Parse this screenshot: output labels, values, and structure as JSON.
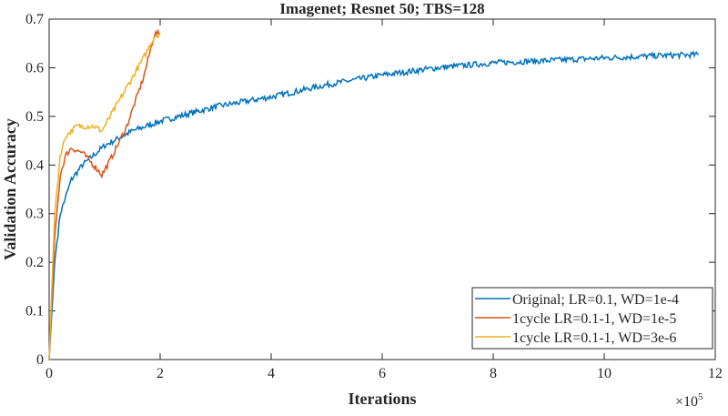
{
  "chart_data": {
    "type": "line",
    "title": "Imagenet; Resnet 50; TBS=128",
    "xlabel": "Iterations",
    "ylabel": "Validation Accuracy",
    "x_multiplier": "×10",
    "x_multiplier_exp": "5",
    "xlim": [
      0,
      12
    ],
    "ylim": [
      0,
      0.7
    ],
    "xticks": [
      0,
      2,
      4,
      6,
      8,
      10,
      12
    ],
    "yticks": [
      0,
      0.1,
      0.2,
      0.3,
      0.4,
      0.5,
      0.6,
      0.7
    ],
    "grid": false,
    "legend_position": "bottom-right",
    "series": [
      {
        "name": "Original; LR=0.1, WD=1e-4",
        "color": "#0072BD",
        "x": [
          0,
          0.1,
          0.2,
          0.4,
          0.6,
          1,
          1.5,
          2,
          3,
          4,
          5,
          6,
          7,
          8,
          9,
          10,
          11,
          11.7
        ],
        "y": [
          0,
          0.2,
          0.3,
          0.37,
          0.4,
          0.44,
          0.47,
          0.49,
          0.52,
          0.54,
          0.565,
          0.585,
          0.6,
          0.61,
          0.615,
          0.62,
          0.625,
          0.627
        ]
      },
      {
        "name": "1cycle LR=0.1-1, WD=1e-5",
        "color": "#D95319",
        "x": [
          0,
          0.1,
          0.2,
          0.3,
          0.4,
          0.6,
          0.8,
          0.95,
          1.1,
          1.4,
          1.7,
          1.9,
          2.0
        ],
        "y": [
          0,
          0.25,
          0.38,
          0.42,
          0.435,
          0.425,
          0.4,
          0.38,
          0.41,
          0.48,
          0.58,
          0.67,
          0.67
        ]
      },
      {
        "name": "1cycle LR=0.1-1, WD=3e-6",
        "color": "#EDB120",
        "x": [
          0,
          0.1,
          0.2,
          0.3,
          0.5,
          0.8,
          0.95,
          1.1,
          1.4,
          1.7,
          1.9,
          2.0
        ],
        "y": [
          0,
          0.3,
          0.42,
          0.46,
          0.48,
          0.48,
          0.47,
          0.5,
          0.56,
          0.62,
          0.665,
          0.67
        ]
      }
    ]
  }
}
